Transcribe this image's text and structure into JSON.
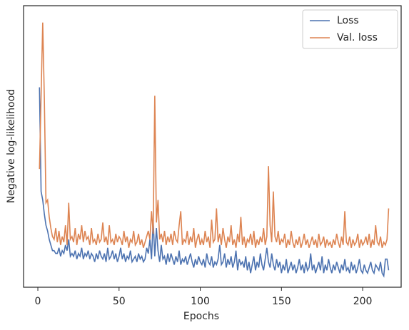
{
  "chart_data": {
    "type": "line",
    "xlabel": "Epochs",
    "ylabel": "Negative log-likelihood",
    "x": [
      1,
      2,
      3,
      4,
      5,
      6,
      7,
      8,
      9,
      10,
      11,
      12,
      13,
      14,
      15,
      16,
      17,
      18,
      19,
      20,
      21,
      22,
      23,
      24,
      25,
      26,
      27,
      28,
      29,
      30,
      31,
      32,
      33,
      34,
      35,
      36,
      37,
      38,
      39,
      40,
      41,
      42,
      43,
      44,
      45,
      46,
      47,
      48,
      49,
      50,
      51,
      52,
      53,
      54,
      55,
      56,
      57,
      58,
      59,
      60,
      61,
      62,
      63,
      64,
      65,
      66,
      67,
      68,
      69,
      70,
      71,
      72,
      73,
      74,
      75,
      76,
      77,
      78,
      79,
      80,
      81,
      82,
      83,
      84,
      85,
      86,
      87,
      88,
      89,
      90,
      91,
      92,
      93,
      94,
      95,
      96,
      97,
      98,
      99,
      100,
      101,
      102,
      103,
      104,
      105,
      106,
      107,
      108,
      109,
      110,
      111,
      112,
      113,
      114,
      115,
      116,
      117,
      118,
      119,
      120,
      121,
      122,
      123,
      124,
      125,
      126,
      127,
      128,
      129,
      130,
      131,
      132,
      133,
      134,
      135,
      136,
      137,
      138,
      139,
      140,
      141,
      142,
      143,
      144,
      145,
      146,
      147,
      148,
      149,
      150,
      151,
      152,
      153,
      154,
      155,
      156,
      157,
      158,
      159,
      160,
      161,
      162,
      163,
      164,
      165,
      166,
      167,
      168,
      169,
      170,
      171,
      172,
      173,
      174,
      175,
      176,
      177,
      178,
      179,
      180,
      181,
      182,
      183,
      184,
      185,
      186,
      187,
      188,
      189,
      190,
      191,
      192,
      193,
      194,
      195,
      196,
      197,
      198,
      199,
      200,
      201,
      202,
      203,
      204,
      205,
      206,
      207,
      208,
      209,
      210,
      211,
      212,
      213,
      214,
      215,
      216
    ],
    "series": [
      {
        "name": "Loss",
        "color": "#4c72b0",
        "values": [
          71,
          34,
          31,
          26,
          22,
          20,
          17,
          15,
          13,
          13,
          12,
          12,
          14,
          11,
          13,
          12,
          15,
          13,
          17,
          11,
          12,
          11,
          13,
          10,
          12,
          11,
          14,
          10,
          12,
          11,
          13,
          10,
          12,
          11,
          9,
          12,
          10,
          13,
          11,
          10,
          12,
          9,
          14,
          10,
          11,
          13,
          10,
          12,
          9,
          11,
          14,
          10,
          12,
          9,
          11,
          10,
          13,
          9,
          10,
          11,
          9,
          12,
          10,
          11,
          9,
          10,
          14,
          12,
          17,
          10,
          24,
          11,
          21,
          13,
          9,
          15,
          10,
          11,
          8,
          12,
          9,
          12,
          10,
          8,
          11,
          9,
          13,
          8,
          10,
          9,
          11,
          8,
          10,
          12,
          9,
          7,
          10,
          8,
          11,
          9,
          8,
          10,
          7,
          12,
          9,
          8,
          11,
          7,
          9,
          8,
          10,
          15,
          8,
          9,
          12,
          7,
          10,
          8,
          11,
          7,
          9,
          13,
          6,
          10,
          8,
          9,
          7,
          11,
          6,
          9,
          5,
          8,
          11,
          6,
          9,
          7,
          12,
          8,
          6,
          10,
          14,
          9,
          7,
          12,
          8,
          6,
          10,
          7,
          9,
          5,
          8,
          6,
          10,
          5,
          7,
          9,
          6,
          8,
          5,
          7,
          10,
          6,
          8,
          5,
          9,
          6,
          7,
          12,
          6,
          8,
          5,
          7,
          9,
          6,
          11,
          5,
          8,
          6,
          10,
          7,
          5,
          8,
          6,
          9,
          7,
          5,
          8,
          6,
          10,
          6,
          7,
          5,
          9,
          6,
          8,
          5,
          7,
          10,
          6,
          5,
          8,
          6,
          5,
          7,
          9,
          6,
          5,
          8,
          7,
          6,
          9,
          5,
          4,
          10,
          10,
          6
        ]
      },
      {
        "name": "Val. loss",
        "color": "#dd8452",
        "values": [
          42,
          68,
          94,
          67,
          30,
          31,
          25,
          21,
          18,
          17,
          21,
          16,
          20,
          15,
          18,
          16,
          22,
          15,
          30,
          17,
          18,
          16,
          21,
          15,
          19,
          17,
          22,
          16,
          20,
          17,
          18,
          15,
          21,
          16,
          17,
          15,
          19,
          16,
          17,
          23,
          16,
          18,
          15,
          22,
          16,
          17,
          15,
          19,
          16,
          18,
          17,
          15,
          20,
          16,
          18,
          14,
          17,
          16,
          20,
          15,
          16,
          19,
          15,
          17,
          14,
          16,
          18,
          20,
          17,
          27,
          19,
          68,
          23,
          31,
          17,
          19,
          16,
          20,
          15,
          18,
          16,
          19,
          15,
          20,
          17,
          16,
          22,
          27,
          15,
          17,
          16,
          20,
          15,
          18,
          16,
          21,
          14,
          17,
          19,
          15,
          17,
          15,
          20,
          16,
          18,
          14,
          24,
          16,
          17,
          28,
          16,
          19,
          15,
          21,
          17,
          14,
          18,
          16,
          22,
          15,
          17,
          14,
          19,
          16,
          25,
          15,
          18,
          14,
          17,
          16,
          19,
          15,
          20,
          14,
          17,
          15,
          18,
          16,
          21,
          15,
          18,
          43,
          22,
          16,
          34,
          18,
          16,
          20,
          15,
          17,
          16,
          19,
          14,
          17,
          15,
          20,
          16,
          14,
          17,
          15,
          18,
          14,
          16,
          19,
          15,
          17,
          14,
          16,
          18,
          15,
          17,
          14,
          19,
          15,
          16,
          18,
          14,
          17,
          15,
          16,
          14,
          17,
          15,
          19,
          16,
          14,
          18,
          15,
          27,
          16,
          15,
          18,
          14,
          17,
          15,
          16,
          19,
          14,
          17,
          15,
          16,
          18,
          15,
          19,
          14,
          17,
          15,
          22,
          16,
          15,
          18,
          14,
          16,
          15,
          17,
          28
        ]
      }
    ],
    "xlim": [
      -8.8,
      223.7
    ],
    "xticks": [
      0,
      50,
      100,
      150,
      200
    ],
    "ylim": [
      0,
      100
    ],
    "legend": "upper right",
    "grid": false
  }
}
